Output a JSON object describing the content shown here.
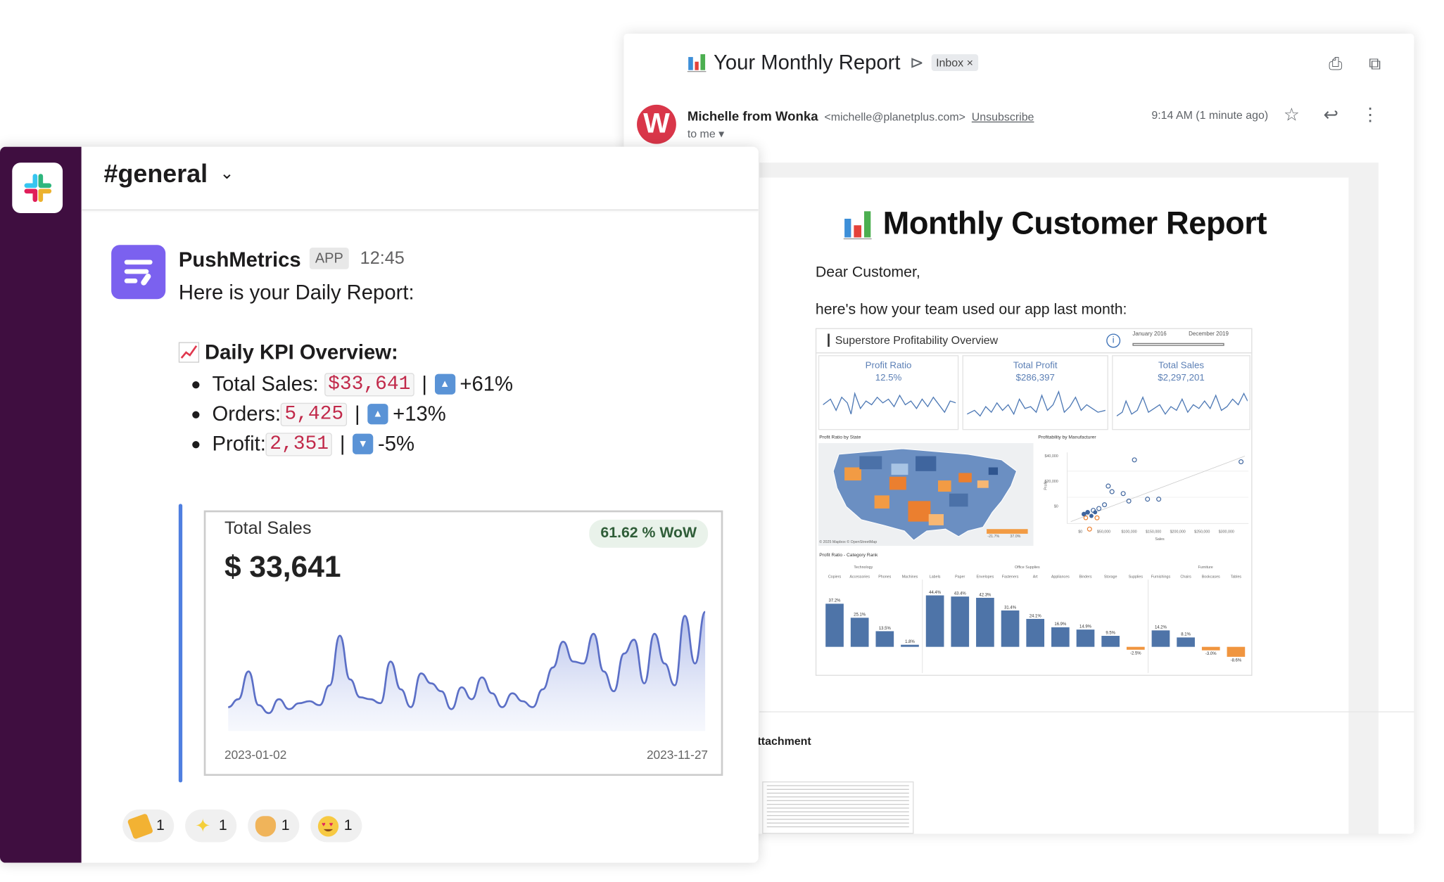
{
  "email": {
    "subject": "Your Monthly Report",
    "label_icon": "label-arrow-icon",
    "inbox_tag": "Inbox ×",
    "sender_initial": "W",
    "sender_name": "Michelle from Wonka",
    "sender_email": "<michelle@planetplus.com>",
    "unsubscribe": "Unsubscribe",
    "to_me": "to me ▾",
    "time": "9:14 AM (1 minute ago)",
    "top_icons": [
      "print-icon",
      "open-new-window-icon"
    ],
    "row_icons": [
      "star-icon",
      "reply-icon",
      "more-vert-icon"
    ],
    "report": {
      "title": "Monthly Customer Report",
      "greeting": "Dear Customer,",
      "intro": "here's how your team used our app last month:",
      "dashboard": {
        "title": "Superstore Profitability Overview",
        "slider_start": "January 2016",
        "slider_end": "December 2019",
        "kpis": [
          {
            "label": "Profit Ratio",
            "value": "12.5%"
          },
          {
            "label": "Total Profit",
            "value": "$286,397"
          },
          {
            "label": "Total Sales",
            "value": "$2,297,201"
          }
        ],
        "map_title": "Profit Ratio by State",
        "map_credit": "© 2025 Mapbox © OpenStreetMap",
        "map_legend": [
          "-21.7%",
          "37.0%"
        ],
        "scatter_title": "Profitability by Manufacturer",
        "scatter_y_ticks": [
          "$40,000",
          "$20,000",
          "$0"
        ],
        "scatter_x_ticks": [
          "$0",
          "$50,000",
          "$100,000",
          "$150,000",
          "$200,000",
          "$250,000",
          "$300,000"
        ],
        "scatter_xlabel": "Sales",
        "scatter_ylabel": "Profit",
        "bar_title": "Profit Ratio - Category Rank",
        "bar_groups": [
          "Technology",
          "Office Supplies",
          "Furniture"
        ],
        "bar_categories": [
          "Copiers",
          "Accessories",
          "Phones",
          "Machines",
          "Labels",
          "Paper",
          "Envelopes",
          "Fasteners",
          "Art",
          "Appliances",
          "Binders",
          "Storage",
          "Supplies",
          "Furnishings",
          "Chairs",
          "Bookcases",
          "Tables"
        ]
      }
    },
    "attachment_label": "ttachment"
  },
  "slack": {
    "channel": "#general",
    "bot_name": "PushMetrics",
    "app_badge": "APP",
    "time": "12:45",
    "intro": "Here is your Daily Report:",
    "kpi_heading": "Daily KPI Overview:",
    "kpis": [
      {
        "label": "Total Sales:",
        "value": "$33,641",
        "change": "+61%",
        "direction": "up"
      },
      {
        "label": "Orders:",
        "value": "5,425",
        "change": "+13%",
        "direction": "up"
      },
      {
        "label": "Profit:",
        "value": "2,351",
        "change": "-5%",
        "direction": "down"
      }
    ],
    "chart_card": {
      "title": "Total Sales",
      "value": "$ 33,641",
      "badge": "61.62 % WoW",
      "x_start": "2023-01-02",
      "x_end": "2023-11-27"
    },
    "reactions": [
      {
        "emoji": "party-popper-icon",
        "count": "1",
        "color": "#f2b233"
      },
      {
        "emoji": "sparkles-icon",
        "count": "1",
        "color": "#f5cf3a"
      },
      {
        "emoji": "clapping-hands-icon",
        "count": "1",
        "color": "#f0b45a"
      },
      {
        "emoji": "heart-eyes-icon",
        "count": "1",
        "color": "#f7c942"
      }
    ]
  },
  "chart_data": [
    {
      "type": "area",
      "title": "Total Sales",
      "x": [
        "2023-01-02",
        "2023-01-09",
        "2023-01-16",
        "2023-01-23",
        "2023-01-30",
        "2023-02-06",
        "2023-02-13",
        "2023-02-20",
        "2023-02-27",
        "2023-03-06",
        "2023-03-13",
        "2023-03-20",
        "2023-03-27",
        "2023-04-03",
        "2023-04-10",
        "2023-04-17",
        "2023-04-24",
        "2023-05-01",
        "2023-05-08",
        "2023-05-15",
        "2023-05-22",
        "2023-05-29",
        "2023-06-05",
        "2023-06-12",
        "2023-06-19",
        "2023-06-26",
        "2023-07-03",
        "2023-07-10",
        "2023-07-17",
        "2023-07-24",
        "2023-07-31",
        "2023-08-07",
        "2023-08-14",
        "2023-08-21",
        "2023-08-28",
        "2023-09-04",
        "2023-09-11",
        "2023-09-18",
        "2023-09-25",
        "2023-10-02",
        "2023-10-09",
        "2023-10-16",
        "2023-10-23",
        "2023-10-30",
        "2023-11-06",
        "2023-11-13",
        "2023-11-20",
        "2023-11-27"
      ],
      "values": [
        12,
        16,
        30,
        13,
        9,
        16,
        11,
        14,
        15,
        13,
        23,
        48,
        26,
        17,
        16,
        14,
        35,
        21,
        12,
        29,
        24,
        20,
        11,
        22,
        16,
        27,
        19,
        12,
        19,
        15,
        12,
        21,
        32,
        45,
        35,
        34,
        49,
        30,
        20,
        39,
        46,
        24,
        49,
        34,
        23,
        58,
        34,
        60
      ],
      "ylim": [
        0,
        65
      ]
    },
    {
      "type": "bar",
      "title": "Profit Ratio - Category Rank",
      "categories": [
        "Copiers",
        "Accessories",
        "Phones",
        "Machines",
        "Labels",
        "Paper",
        "Envelopes",
        "Fasteners",
        "Art",
        "Appliances",
        "Binders",
        "Storage",
        "Supplies",
        "Furnishings",
        "Chairs",
        "Bookcases",
        "Tables"
      ],
      "values": [
        37.2,
        25.1,
        13.5,
        1.8,
        44.4,
        43.4,
        42.3,
        31.4,
        24.1,
        16.9,
        14.9,
        9.5,
        -2.5,
        14.2,
        8.1,
        -3.0,
        -8.6
      ],
      "labels": [
        "37.2%",
        "25.1%",
        "13.5%",
        "1.8%",
        "44.4%",
        "43.4%",
        "42.3%",
        "31.4%",
        "24.1%",
        "16.9%",
        "14.9%",
        "9.5%",
        "-2.5%",
        "14.2%",
        "8.1%",
        "-3.0%",
        "-8.6%"
      ],
      "ylim": [
        -10,
        50
      ]
    }
  ]
}
